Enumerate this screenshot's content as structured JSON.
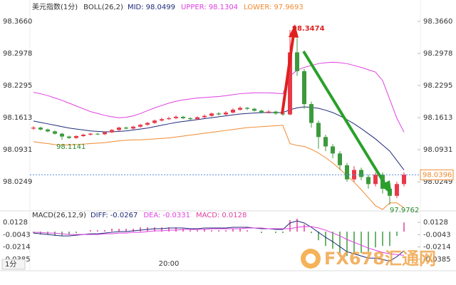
{
  "chart_data": {
    "type": "candlestick",
    "title": "美元指数(1分)",
    "indicator": "BOLL(26,2)",
    "categories": [
      null,
      null,
      null,
      null,
      null,
      null,
      null,
      null,
      null,
      null,
      null,
      null,
      null,
      null,
      null,
      null,
      null,
      null,
      null,
      "20:00",
      null,
      null,
      null,
      null,
      null,
      null,
      null,
      null,
      null,
      null,
      null,
      null,
      null,
      null,
      null,
      null,
      null,
      null,
      null,
      null,
      null,
      null,
      null,
      null,
      null,
      null,
      null,
      null,
      null,
      null,
      null,
      null,
      null
    ],
    "open": [
      98.138,
      98.14,
      98.136,
      98.132,
      98.127,
      98.121,
      98.118,
      98.122,
      98.125,
      98.127,
      98.126,
      98.13,
      98.135,
      98.14,
      98.138,
      98.142,
      98.146,
      98.15,
      98.155,
      98.158,
      98.16,
      98.163,
      98.16,
      98.158,
      98.162,
      98.165,
      98.17,
      98.168,
      98.172,
      98.178,
      98.182,
      98.18,
      98.176,
      98.172,
      98.174,
      98.17,
      98.168,
      98.3,
      98.26,
      98.19,
      98.15,
      98.12,
      98.1,
      98.085,
      98.06,
      98.03,
      98.05,
      98.035,
      98.02,
      98.04,
      98.01,
      97.995,
      98.02
    ],
    "high": [
      98.143,
      98.142,
      98.138,
      98.134,
      98.129,
      98.123,
      98.124,
      98.127,
      98.129,
      98.129,
      98.132,
      98.137,
      98.142,
      98.142,
      98.144,
      98.148,
      98.152,
      98.157,
      98.161,
      98.163,
      98.166,
      98.165,
      98.162,
      98.164,
      98.168,
      98.172,
      98.173,
      98.175,
      98.181,
      98.185,
      98.184,
      98.182,
      98.178,
      98.177,
      98.176,
      98.172,
      98.3474,
      98.33,
      98.265,
      98.195,
      98.155,
      98.125,
      98.105,
      98.09,
      98.065,
      98.058,
      98.055,
      98.04,
      98.045,
      98.045,
      98.015,
      98.025,
      98.045
    ],
    "low": [
      98.135,
      98.134,
      98.13,
      98.125,
      98.1141,
      98.116,
      98.116,
      98.12,
      98.123,
      98.124,
      98.124,
      98.128,
      98.133,
      98.136,
      98.136,
      98.14,
      98.144,
      98.148,
      98.153,
      98.156,
      98.158,
      98.158,
      98.155,
      98.156,
      98.16,
      98.163,
      98.166,
      98.166,
      98.17,
      98.176,
      98.177,
      98.174,
      98.17,
      98.17,
      98.167,
      98.165,
      98.166,
      98.25,
      98.18,
      98.14,
      98.095,
      98.09,
      98.075,
      98.05,
      98.025,
      98.025,
      98.028,
      98.01,
      98.015,
      98.0,
      97.9762,
      97.99,
      98.015
    ],
    "close": [
      98.14,
      98.136,
      98.132,
      98.127,
      98.121,
      98.118,
      98.122,
      98.125,
      98.127,
      98.126,
      98.13,
      98.135,
      98.14,
      98.138,
      98.142,
      98.146,
      98.15,
      98.155,
      98.158,
      98.16,
      98.163,
      98.16,
      98.158,
      98.162,
      98.165,
      98.17,
      98.168,
      98.172,
      98.178,
      98.182,
      98.18,
      98.176,
      98.172,
      98.174,
      98.17,
      98.168,
      98.3,
      98.26,
      98.19,
      98.15,
      98.12,
      98.1,
      98.085,
      98.06,
      98.03,
      98.05,
      98.035,
      98.02,
      98.04,
      98.01,
      97.995,
      98.02,
      98.04
    ],
    "up_color": "#e8394a",
    "down_color": "#3c9a3c",
    "ylim": [
      97.969,
      98.384
    ],
    "yticks": [
      {
        "value": 98.366,
        "label": "98.3660"
      },
      98.2978,
      98.2295,
      98.1613,
      98.0931,
      98.0249
    ],
    "bands": [
      {
        "name": "MID:",
        "color": "#1f2a7a",
        "values": [
          98.154,
          98.151,
          98.148,
          98.145,
          98.142,
          98.139,
          98.137,
          98.135,
          98.133,
          98.132,
          98.131,
          98.131,
          98.132,
          98.133,
          98.135,
          98.137,
          98.139,
          98.142,
          98.145,
          98.148,
          98.151,
          98.153,
          98.155,
          98.157,
          98.159,
          98.161,
          98.163,
          98.165,
          98.167,
          98.169,
          98.17,
          98.171,
          98.172,
          98.172,
          98.172,
          98.172,
          98.178,
          98.182,
          98.184,
          98.183,
          98.181,
          98.177,
          98.172,
          98.165,
          98.157,
          98.148,
          98.138,
          98.127,
          98.116,
          98.103,
          98.09,
          98.07,
          98.0499
        ]
      },
      {
        "name": "UPPER:",
        "color": "#e040e0",
        "values": [
          98.215,
          98.212,
          98.208,
          98.203,
          98.198,
          98.192,
          98.186,
          98.18,
          98.174,
          98.17,
          98.166,
          98.163,
          98.161,
          98.162,
          98.165,
          98.17,
          98.176,
          98.182,
          98.187,
          98.192,
          98.196,
          98.199,
          98.201,
          98.203,
          98.204,
          98.205,
          98.206,
          98.208,
          98.21,
          98.212,
          98.213,
          98.214,
          98.214,
          98.214,
          98.213,
          98.212,
          98.25,
          98.262,
          98.268,
          98.272,
          98.276,
          98.278,
          98.279,
          98.278,
          98.276,
          98.272,
          98.268,
          98.263,
          98.258,
          98.24,
          98.2,
          98.16,
          98.1304
        ]
      },
      {
        "name": "LOWER:",
        "color": "#f08a30",
        "values": [
          98.11,
          98.108,
          98.106,
          98.104,
          98.103,
          98.103,
          98.104,
          98.105,
          98.106,
          98.107,
          98.108,
          98.11,
          98.112,
          98.113,
          98.114,
          98.114,
          98.115,
          98.116,
          98.117,
          98.118,
          98.12,
          98.122,
          98.124,
          98.126,
          98.128,
          98.13,
          98.132,
          98.134,
          98.136,
          98.138,
          98.14,
          98.141,
          98.142,
          98.143,
          98.144,
          98.145,
          98.106,
          98.102,
          98.1,
          98.094,
          98.086,
          98.076,
          98.065,
          98.052,
          98.038,
          98.024,
          98.008,
          97.991,
          97.974,
          97.966,
          97.98,
          97.98,
          97.9693
        ]
      }
    ],
    "current_price": 98.0396,
    "macd": {
      "label": "MACD(26,12,9)",
      "ylim": [
        -0.0546,
        0.0249
      ],
      "yticks": [
        0.0128,
        -0.0043,
        -0.0214,
        -0.0385
      ],
      "lines": [
        {
          "name": "DIFF:",
          "color": "#1f2a7a",
          "values": [
            -0.002,
            -0.003,
            -0.004,
            -0.005,
            -0.006,
            -0.006,
            -0.005,
            -0.004,
            -0.003,
            -0.003,
            -0.002,
            -0.001,
            0.0,
            0.0,
            0.001,
            0.002,
            0.003,
            0.004,
            0.004,
            0.005,
            0.005,
            0.005,
            0.004,
            0.004,
            0.005,
            0.005,
            0.005,
            0.005,
            0.006,
            0.006,
            0.006,
            0.005,
            0.004,
            0.004,
            0.003,
            0.003,
            0.012,
            0.015,
            0.012,
            0.006,
            -0.001,
            -0.008,
            -0.014,
            -0.021,
            -0.028,
            -0.031,
            -0.034,
            -0.037,
            -0.037,
            -0.039,
            -0.041,
            -0.035,
            -0.0267
          ]
        },
        {
          "name": "DEA:",
          "color": "#e040e0",
          "values": [
            -0.001,
            -0.001,
            -0.002,
            -0.002,
            -0.003,
            -0.004,
            -0.004,
            -0.004,
            -0.004,
            -0.004,
            -0.003,
            -0.003,
            -0.002,
            -0.002,
            -0.001,
            -0.001,
            0.0,
            0.001,
            0.001,
            0.002,
            0.002,
            0.003,
            0.003,
            0.003,
            0.003,
            0.004,
            0.004,
            0.004,
            0.004,
            0.004,
            0.005,
            0.005,
            0.005,
            0.004,
            0.004,
            0.004,
            0.004,
            0.006,
            0.007,
            0.007,
            0.005,
            0.002,
            -0.002,
            -0.006,
            -0.011,
            -0.015,
            -0.019,
            -0.023,
            -0.026,
            -0.029,
            -0.031,
            -0.032,
            -0.0331
          ]
        }
      ],
      "histogram": {
        "name": "MACD:",
        "up_color": "#e040a0",
        "down_color": "#3c9a3c",
        "values": [
          -0.002,
          -0.004,
          -0.004,
          -0.006,
          -0.006,
          -0.004,
          -0.002,
          0,
          0.002,
          0.002,
          0.002,
          0.004,
          0.004,
          0.004,
          0.004,
          0.006,
          0.006,
          0.006,
          0.006,
          0.006,
          0.006,
          0.004,
          0.002,
          0.002,
          0.004,
          0.002,
          0.002,
          0.002,
          0.004,
          0.004,
          0.002,
          0,
          -0.002,
          0,
          -0.002,
          -0.002,
          0.016,
          0.018,
          0.01,
          -0.002,
          -0.012,
          -0.02,
          -0.024,
          -0.03,
          -0.034,
          -0.032,
          -0.03,
          -0.028,
          -0.022,
          -0.02,
          -0.02,
          -0.006,
          0.0128
        ]
      }
    },
    "period_button": "1分",
    "watermark": "FX678汇通网"
  }
}
